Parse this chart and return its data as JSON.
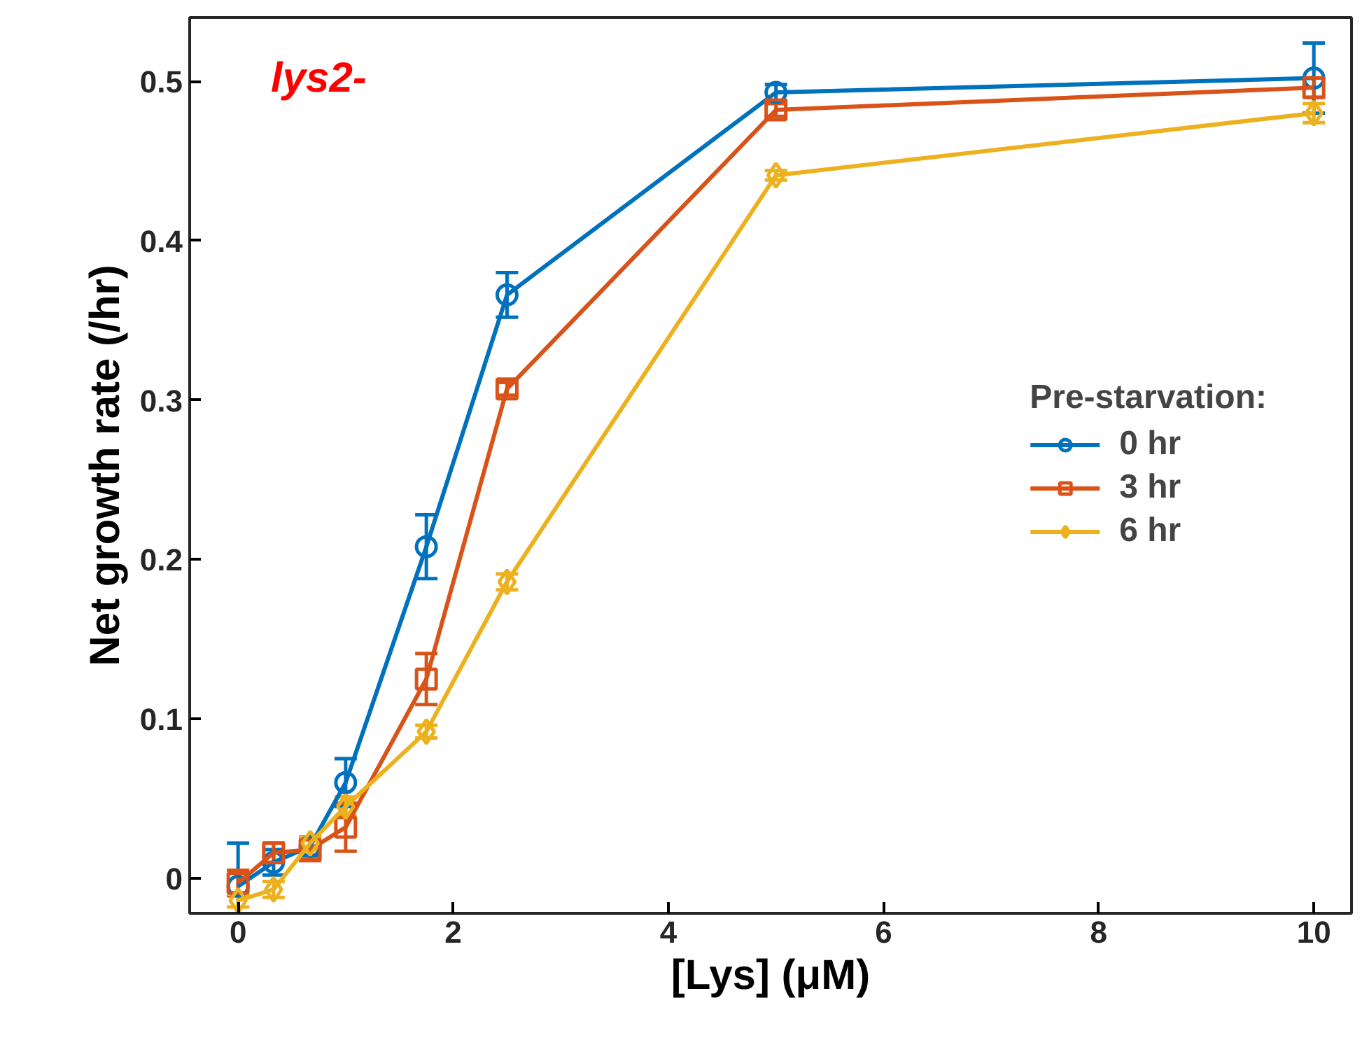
{
  "chart_data": {
    "type": "line",
    "xlabel": "[Lys] (μM)",
    "ylabel": "Net growth rate (/hr)",
    "legend_title": "Pre-starvation:",
    "annotations": [
      "lys2-"
    ],
    "x": [
      0,
      0.33,
      0.67,
      1,
      1.75,
      2.5,
      5,
      10
    ],
    "xlim": [
      -0.45,
      10.35
    ],
    "xticks": [
      0,
      2,
      4,
      6,
      8,
      10
    ],
    "ylim": [
      -0.022,
      0.54
    ],
    "yticks": [
      0,
      0.1,
      0.2,
      0.3,
      0.4,
      0.5
    ],
    "grid": false,
    "legend": "right",
    "line_style": "solid",
    "series": [
      {
        "name": "0 hr",
        "color": "#0072bd",
        "marker": "circle",
        "values": [
          -0.005,
          0.01,
          0.02,
          0.06,
          0.208,
          0.366,
          0.493,
          0.502
        ],
        "errors": [
          0.027,
          0.008,
          0.006,
          0.015,
          0.02,
          0.014,
          0.005,
          0.022
        ]
      },
      {
        "name": "3 hr",
        "color": "#d95319",
        "marker": "square",
        "values": [
          -0.003,
          0.016,
          0.018,
          0.032,
          0.125,
          0.307,
          0.482,
          0.496
        ],
        "errors": [
          0.008,
          0.006,
          0.007,
          0.015,
          0.016,
          0.004,
          0.004,
          0.006
        ]
      },
      {
        "name": "6 hr",
        "color": "#edb120",
        "marker": "diamond",
        "values": [
          -0.014,
          -0.007,
          0.022,
          0.045,
          0.092,
          0.186,
          0.441,
          0.48
        ],
        "errors": [
          0.004,
          0.005,
          0.004,
          0.006,
          0.004,
          0.005,
          0.003,
          0.006
        ]
      }
    ]
  }
}
